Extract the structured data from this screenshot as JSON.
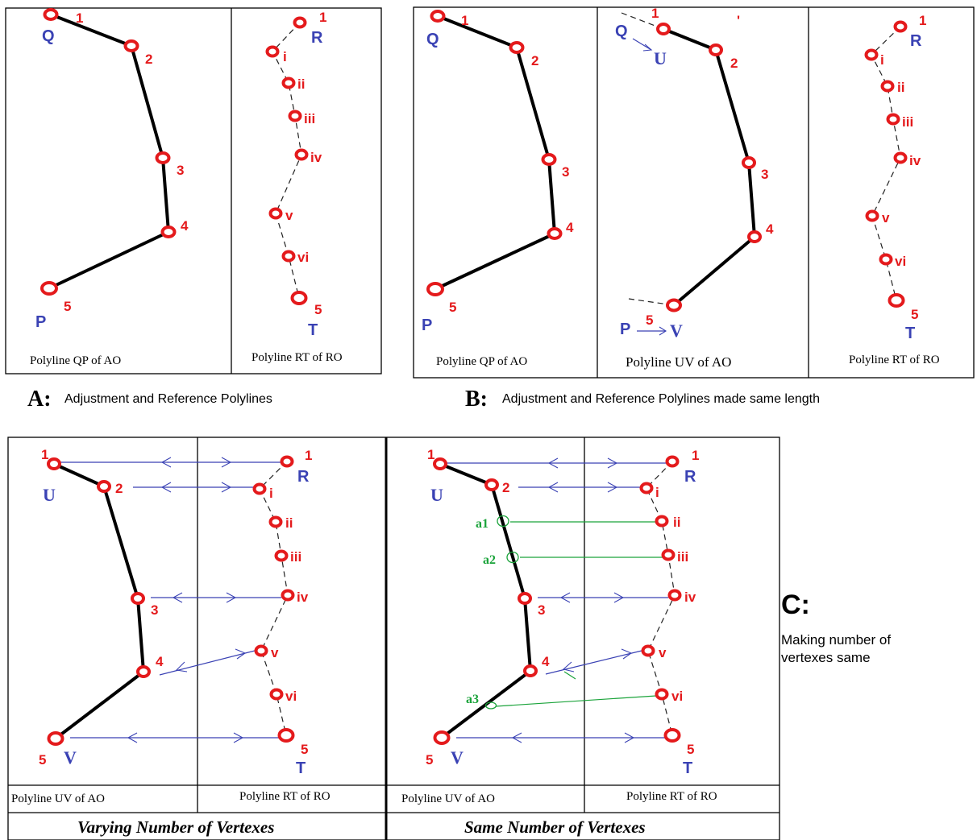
{
  "figure": {
    "panel_a": {
      "letter": "A:",
      "title": "Adjustment and Reference Polylines",
      "caption_left": "Polyline QP of AO",
      "caption_right": "Polyline RT of RO",
      "adj_start": "Q",
      "adj_end": "P",
      "ref_start": "R",
      "ref_end": "T"
    },
    "panel_b": {
      "letter": "B:",
      "title": "Adjustment and Reference Polylines made same length",
      "caption_left": "Polyline QP of AO",
      "caption_mid": "Polyline UV of AO",
      "caption_right": "Polyline RT of RO",
      "adj_start": "Q",
      "adj_end": "P",
      "mid_q": "Q",
      "mid_u": "U",
      "mid_p": "P",
      "mid_v": "V",
      "ref_start": "R",
      "ref_end": "T"
    },
    "panel_c": {
      "letter": "C:",
      "desc_line1": "Making number of",
      "desc_line2": "vertexes same",
      "left": {
        "caption_left": "Polyline UV of AO",
        "caption_right": "Polyline RT of RO",
        "bottom": "Varying Number of Vertexes",
        "adj_start": "U",
        "adj_end": "V",
        "ref_start": "R",
        "ref_end": "T"
      },
      "right": {
        "caption_left": "Polyline UV of AO",
        "caption_right": "Polyline RT of RO",
        "bottom": "Same Number of Vertexes",
        "adj_start": "U",
        "adj_end": "V",
        "ref_start": "R",
        "ref_end": "T",
        "added": [
          "a1",
          "a2",
          "a3"
        ]
      }
    },
    "adj_vertex_labels": [
      "1",
      "2",
      "3",
      "4",
      "5"
    ],
    "ref_vertex_labels": [
      "1",
      "i",
      "ii",
      "iii",
      "iv",
      "v",
      "vi",
      "5"
    ],
    "colors": {
      "vertex": "#e41a1c",
      "endpoint_label": "#3a42b4",
      "link": "#3a42b4",
      "added_link": "#1aa33a"
    }
  }
}
